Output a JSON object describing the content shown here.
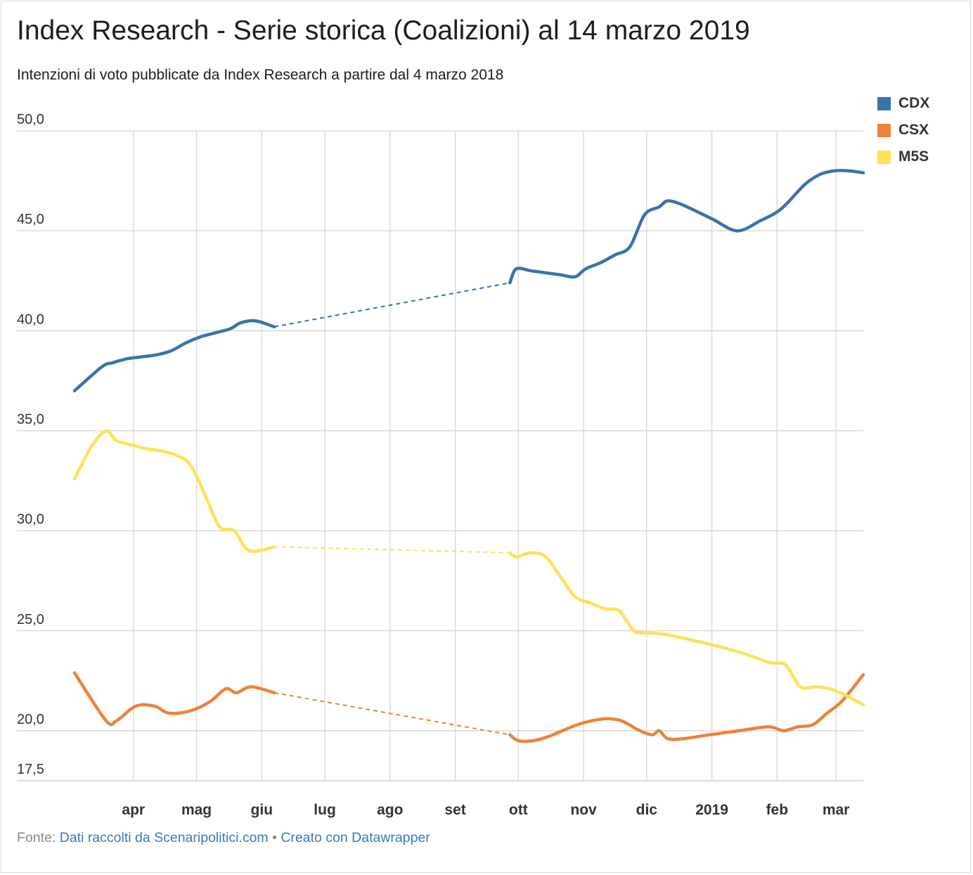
{
  "title": "Index Research - Serie storica (Coalizioni) al 14 marzo 2019",
  "subtitle": "Intenzioni di voto pubblicate da Index Research a partire dal 4 marzo 2018",
  "footer": {
    "source_prefix": "Fonte:",
    "source_link": "Dati raccolti da Scenaripolitici.com",
    "separator": "•",
    "made_with": "Creato con Datawrapper"
  },
  "colors": {
    "CDX": "#3a73aa",
    "CSX": "#ec833a",
    "M5S": "#fbe35a",
    "grid": "#d6d6d6",
    "axis_text": "#333333"
  },
  "chart_data": {
    "type": "line",
    "title": "Index Research - Serie storica (Coalizioni) al 14 marzo 2019",
    "subtitle": "Intenzioni di voto pubblicate da Index Research a partire dal 4 marzo 2018",
    "xlabel": "",
    "ylabel": "",
    "x_range": [
      "2018-03-04",
      "2019-03-14"
    ],
    "ylim": [
      17.5,
      50
    ],
    "y_ticks": [
      {
        "value": 50,
        "label": "50,0"
      },
      {
        "value": 45,
        "label": "45,0"
      },
      {
        "value": 40,
        "label": "40,0"
      },
      {
        "value": 35,
        "label": "35,0"
      },
      {
        "value": 30,
        "label": "30,0"
      },
      {
        "value": 25,
        "label": "25,0"
      },
      {
        "value": 20,
        "label": "20,0"
      },
      {
        "value": 17.5,
        "label": "17,5"
      }
    ],
    "x_ticks": [
      {
        "date": "2018-04-01",
        "label": "apr"
      },
      {
        "date": "2018-05-01",
        "label": "mag"
      },
      {
        "date": "2018-06-01",
        "label": "giu"
      },
      {
        "date": "2018-07-01",
        "label": "lug"
      },
      {
        "date": "2018-08-01",
        "label": "ago"
      },
      {
        "date": "2018-09-01",
        "label": "set"
      },
      {
        "date": "2018-10-01",
        "label": "ott"
      },
      {
        "date": "2018-11-01",
        "label": "nov"
      },
      {
        "date": "2018-12-01",
        "label": "dic"
      },
      {
        "date": "2019-01-01",
        "label": "2019"
      },
      {
        "date": "2019-02-01",
        "label": "feb"
      },
      {
        "date": "2019-03-01",
        "label": "mar"
      }
    ],
    "grid": true,
    "gap": {
      "from": "2018-06-08",
      "to": "2018-09-27"
    },
    "legend_position": "top-right",
    "series": [
      {
        "name": "CDX",
        "points": [
          [
            "2018-03-04",
            37.0
          ],
          [
            "2018-03-17",
            38.2
          ],
          [
            "2018-03-22",
            38.4
          ],
          [
            "2018-03-29",
            38.6
          ],
          [
            "2018-04-05",
            38.7
          ],
          [
            "2018-04-12",
            38.8
          ],
          [
            "2018-04-19",
            39.0
          ],
          [
            "2018-04-26",
            39.4
          ],
          [
            "2018-05-03",
            39.7
          ],
          [
            "2018-05-10",
            39.9
          ],
          [
            "2018-05-17",
            40.1
          ],
          [
            "2018-05-22",
            40.4
          ],
          [
            "2018-05-29",
            40.5
          ],
          [
            "2018-06-07",
            40.2
          ],
          [
            "2018-09-27",
            42.4
          ],
          [
            "2018-09-30",
            43.1
          ],
          [
            "2018-10-07",
            43.0
          ],
          [
            "2018-10-14",
            42.9
          ],
          [
            "2018-10-21",
            42.8
          ],
          [
            "2018-10-28",
            42.7
          ],
          [
            "2018-11-02",
            43.1
          ],
          [
            "2018-11-09",
            43.4
          ],
          [
            "2018-11-16",
            43.8
          ],
          [
            "2018-11-23",
            44.2
          ],
          [
            "2018-11-30",
            45.8
          ],
          [
            "2018-12-07",
            46.2
          ],
          [
            "2018-12-11",
            46.5
          ],
          [
            "2018-12-18",
            46.3
          ],
          [
            "2019-01-01",
            45.6
          ],
          [
            "2019-01-13",
            45.0
          ],
          [
            "2019-01-24",
            45.5
          ],
          [
            "2019-02-03",
            46.1
          ],
          [
            "2019-02-14",
            47.3
          ],
          [
            "2019-02-21",
            47.8
          ],
          [
            "2019-02-28",
            48.0
          ],
          [
            "2019-03-07",
            48.0
          ],
          [
            "2019-03-14",
            47.9
          ]
        ]
      },
      {
        "name": "CSX",
        "points": [
          [
            "2018-03-04",
            22.9
          ],
          [
            "2018-03-19",
            20.5
          ],
          [
            "2018-03-24",
            20.5
          ],
          [
            "2018-03-31",
            21.1
          ],
          [
            "2018-04-05",
            21.3
          ],
          [
            "2018-04-12",
            21.2
          ],
          [
            "2018-04-17",
            20.9
          ],
          [
            "2018-04-24",
            20.9
          ],
          [
            "2018-05-01",
            21.1
          ],
          [
            "2018-05-08",
            21.5
          ],
          [
            "2018-05-15",
            22.1
          ],
          [
            "2018-05-20",
            21.9
          ],
          [
            "2018-05-27",
            22.2
          ],
          [
            "2018-06-07",
            21.9
          ],
          [
            "2018-09-27",
            19.8
          ],
          [
            "2018-10-01",
            19.5
          ],
          [
            "2018-10-08",
            19.5
          ],
          [
            "2018-10-15",
            19.7
          ],
          [
            "2018-10-22",
            20.0
          ],
          [
            "2018-10-29",
            20.3
          ],
          [
            "2018-11-05",
            20.5
          ],
          [
            "2018-11-12",
            20.6
          ],
          [
            "2018-11-19",
            20.5
          ],
          [
            "2018-11-26",
            20.1
          ],
          [
            "2018-11-30",
            19.9
          ],
          [
            "2018-12-04",
            19.8
          ],
          [
            "2018-12-07",
            20.0
          ],
          [
            "2018-12-11",
            19.6
          ],
          [
            "2018-12-18",
            19.6
          ],
          [
            "2018-12-31",
            19.8
          ],
          [
            "2019-01-14",
            20.0
          ],
          [
            "2019-01-28",
            20.2
          ],
          [
            "2019-02-04",
            20.0
          ],
          [
            "2019-02-11",
            20.2
          ],
          [
            "2019-02-18",
            20.3
          ],
          [
            "2019-02-25",
            20.9
          ],
          [
            "2019-03-04",
            21.5
          ],
          [
            "2019-03-14",
            22.8
          ]
        ]
      },
      {
        "name": "M5S",
        "points": [
          [
            "2018-03-04",
            32.6
          ],
          [
            "2018-03-12",
            34.2
          ],
          [
            "2018-03-19",
            35.0
          ],
          [
            "2018-03-24",
            34.5
          ],
          [
            "2018-03-31",
            34.3
          ],
          [
            "2018-04-07",
            34.1
          ],
          [
            "2018-04-14",
            34.0
          ],
          [
            "2018-04-21",
            33.8
          ],
          [
            "2018-04-28",
            33.3
          ],
          [
            "2018-05-05",
            31.8
          ],
          [
            "2018-05-12",
            30.2
          ],
          [
            "2018-05-19",
            30.0
          ],
          [
            "2018-05-26",
            29.0
          ],
          [
            "2018-06-07",
            29.2
          ],
          [
            "2018-09-27",
            28.9
          ],
          [
            "2018-09-30",
            28.7
          ],
          [
            "2018-10-07",
            28.9
          ],
          [
            "2018-10-14",
            28.7
          ],
          [
            "2018-10-21",
            27.7
          ],
          [
            "2018-10-28",
            26.7
          ],
          [
            "2018-11-04",
            26.4
          ],
          [
            "2018-11-11",
            26.1
          ],
          [
            "2018-11-18",
            26.0
          ],
          [
            "2018-11-25",
            25.0
          ],
          [
            "2018-12-02",
            24.9
          ],
          [
            "2018-12-11",
            24.8
          ],
          [
            "2019-01-01",
            24.3
          ],
          [
            "2019-01-15",
            23.9
          ],
          [
            "2019-01-29",
            23.4
          ],
          [
            "2019-02-05",
            23.3
          ],
          [
            "2019-02-12",
            22.2
          ],
          [
            "2019-02-19",
            22.2
          ],
          [
            "2019-02-26",
            22.1
          ],
          [
            "2019-03-05",
            21.8
          ],
          [
            "2019-03-14",
            21.3
          ]
        ]
      }
    ]
  }
}
